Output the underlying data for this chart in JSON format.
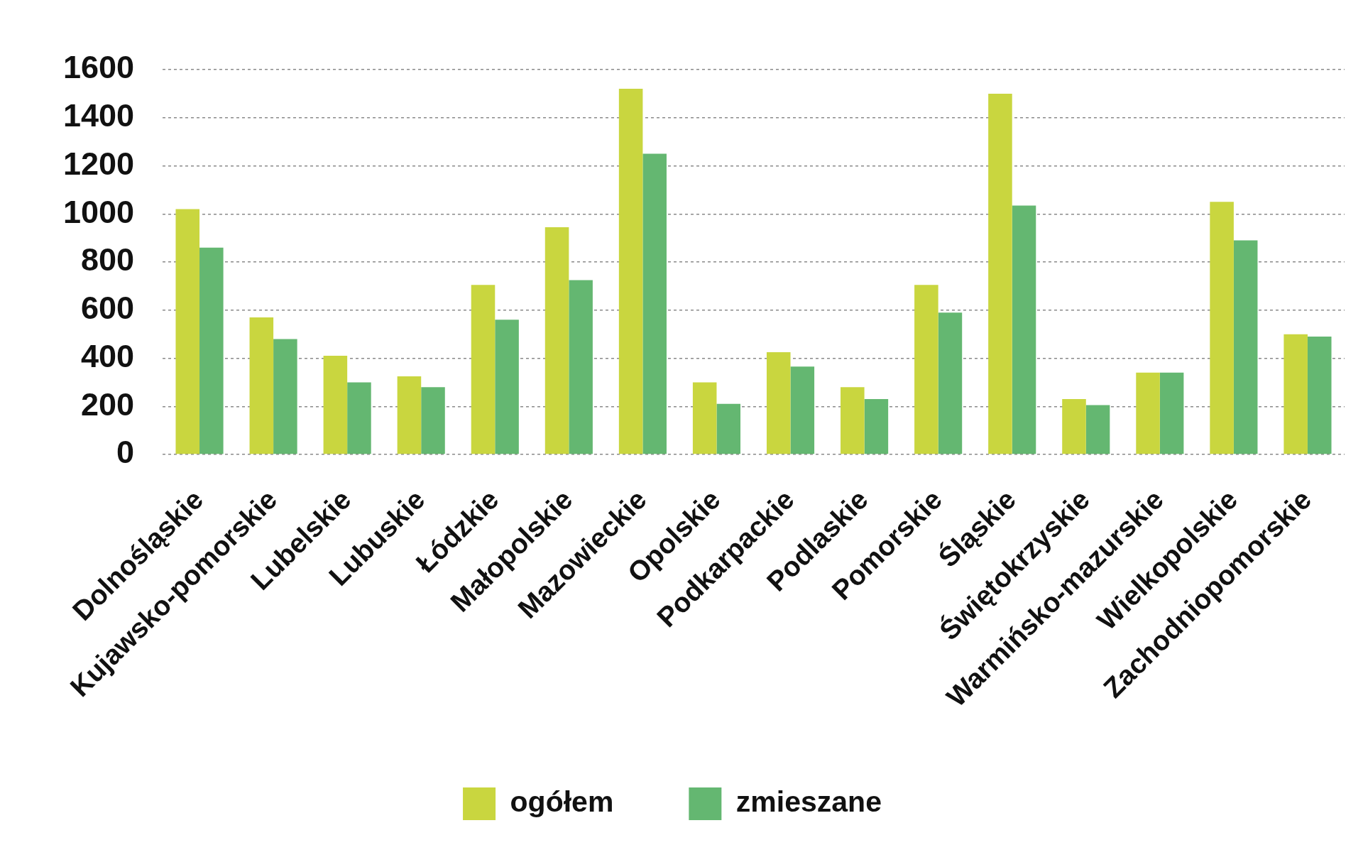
{
  "chart_data": {
    "type": "bar",
    "categories": [
      "Dolnośląskie",
      "Kujawsko-pomorskie",
      "Lubelskie",
      "Lubuskie",
      "Łódzkie",
      "Małopolskie",
      "Mazowieckie",
      "Opolskie",
      "Podkarpackie",
      "Podlaskie",
      "Pomorskie",
      "Śląskie",
      "Świętokrzyskie",
      "Warmińsko-mazurskie",
      "Wielkopolskie",
      "Zachodniopomorskie"
    ],
    "series": [
      {
        "name": "ogółem",
        "color": "#c9d63f",
        "values": [
          1020,
          570,
          410,
          325,
          705,
          945,
          1520,
          300,
          425,
          280,
          705,
          1500,
          230,
          340,
          1050,
          500
        ]
      },
      {
        "name": "zmieszane",
        "color": "#64b771",
        "values": [
          860,
          480,
          300,
          280,
          560,
          725,
          1250,
          210,
          365,
          230,
          590,
          1035,
          205,
          340,
          890,
          490
        ]
      }
    ],
    "ylim": [
      0,
      1600
    ],
    "yticks": [
      0,
      200,
      400,
      600,
      800,
      1000,
      1200,
      1400,
      1600
    ],
    "grid": "y",
    "legend": "bottom"
  }
}
